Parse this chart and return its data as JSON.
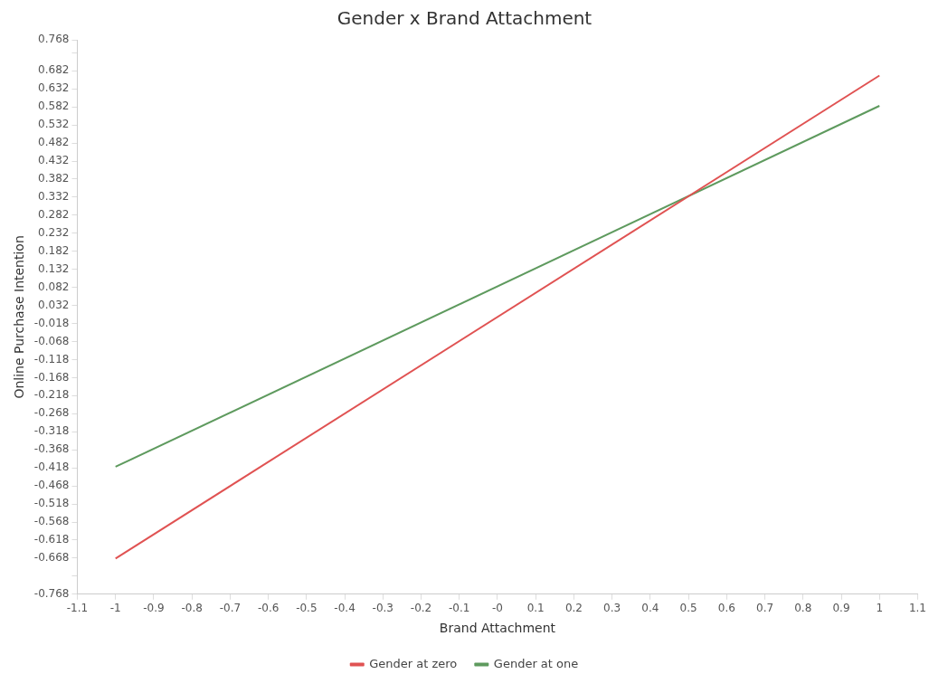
{
  "chart_data": {
    "type": "line",
    "title": "Gender x Brand Attachment",
    "xlabel": "Brand Attachment",
    "ylabel": "Online Purchase Intention",
    "x": [
      -1,
      1
    ],
    "series": [
      {
        "name": "Gender at zero",
        "color": "#e05252",
        "values": [
          -0.669,
          0.669
        ]
      },
      {
        "name": "Gender at one",
        "color": "#5e9a5e",
        "values": [
          -0.415,
          0.585
        ]
      }
    ],
    "xlim": [
      -1.1,
      1.1
    ],
    "xticks": [
      -1.1,
      -1,
      -0.9,
      -0.8,
      -0.7,
      -0.6,
      -0.5,
      -0.4,
      -0.3,
      -0.2,
      -0.1,
      {
        "value": 0,
        "label": "-0"
      },
      0.1,
      0.2,
      0.3,
      0.4,
      0.5,
      0.6,
      0.7,
      0.8,
      0.9,
      1,
      1.1
    ],
    "ylim": [
      -0.768,
      0.768
    ],
    "yticks": [
      -0.768,
      {
        "value": -0.718,
        "label": null
      },
      -0.668,
      -0.618,
      -0.568,
      -0.518,
      -0.468,
      -0.418,
      -0.368,
      -0.318,
      -0.268,
      -0.218,
      -0.168,
      -0.118,
      -0.068,
      -0.018,
      0.032,
      0.082,
      0.132,
      0.182,
      0.232,
      0.282,
      0.332,
      0.382,
      0.432,
      0.482,
      0.532,
      0.582,
      0.632,
      0.682,
      {
        "value": 0.732,
        "label": null
      },
      0.768
    ],
    "grid": false,
    "legend": "bottom",
    "marker": "none",
    "line_style": "solid"
  }
}
